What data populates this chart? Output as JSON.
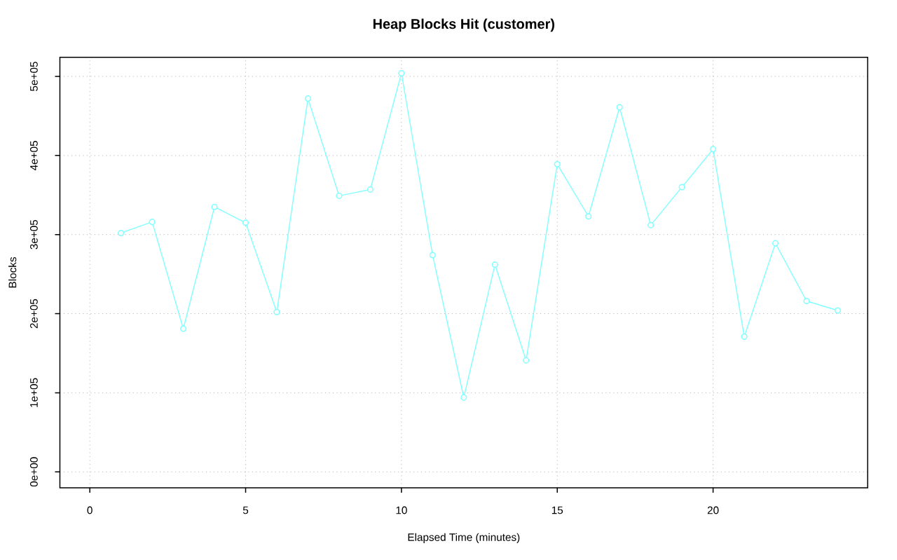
{
  "chart_data": {
    "type": "line",
    "title": "Heap Blocks Hit (customer)",
    "xlabel": "Elapsed Time (minutes)",
    "ylabel": "Blocks",
    "x": [
      1,
      2,
      3,
      4,
      5,
      6,
      7,
      8,
      9,
      10,
      11,
      12,
      13,
      14,
      15,
      16,
      17,
      18,
      19,
      20,
      21,
      22,
      23,
      24
    ],
    "values": [
      302000,
      316000,
      181000,
      335000,
      315000,
      202000,
      472000,
      349000,
      357000,
      504000,
      274000,
      94000,
      262000,
      141000,
      389000,
      323000,
      461000,
      312000,
      360000,
      408000,
      171000,
      289000,
      216000,
      204000
    ],
    "color": "#80ffff",
    "marker": "circle",
    "line_style": "solid",
    "grid": true,
    "xlim": [
      -0.96,
      24.96
    ],
    "ylim": [
      -20160,
      524160
    ],
    "xticks": [
      0,
      5,
      10,
      15,
      20
    ],
    "yticks": [
      {
        "value": 0,
        "label": "0e+00"
      },
      {
        "value": 100000,
        "label": "1e+05"
      },
      {
        "value": 200000,
        "label": "2e+05"
      },
      {
        "value": 300000,
        "label": "3e+05"
      },
      {
        "value": 400000,
        "label": "4e+05"
      },
      {
        "value": 500000,
        "label": "5e+05"
      }
    ]
  }
}
